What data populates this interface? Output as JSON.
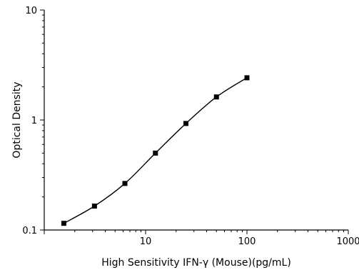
{
  "chart_data": {
    "type": "scatter",
    "title": "",
    "xlabel": "High Sensitivity IFN-γ (Mouse)(pg/mL)",
    "ylabel": "Optical Density",
    "x_scale": "log",
    "y_scale": "log",
    "xlim": [
      1,
      1000
    ],
    "ylim": [
      0.1,
      10
    ],
    "x_ticks": [
      "10",
      "100",
      "1000"
    ],
    "y_ticks": [
      "0.1",
      "1",
      "10"
    ],
    "grid": false,
    "legend": "none",
    "fit_line": "smooth curve through points",
    "series": [
      {
        "points": [
          {
            "x": 1.56,
            "y": 0.115
          },
          {
            "x": 3.13,
            "y": 0.165
          },
          {
            "x": 6.25,
            "y": 0.265
          },
          {
            "x": 12.5,
            "y": 0.5
          },
          {
            "x": 25,
            "y": 0.93
          },
          {
            "x": 50,
            "y": 1.62
          },
          {
            "x": 100,
            "y": 2.42
          }
        ]
      }
    ],
    "colors": {
      "marker": "#000000",
      "line": "#000000",
      "axis": "#000000"
    }
  }
}
